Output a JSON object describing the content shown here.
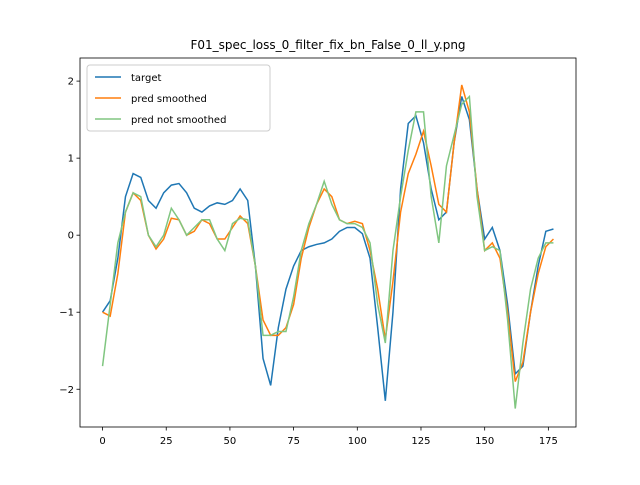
{
  "chart_data": {
    "type": "line",
    "title": "F01_spec_loss_0_filter_fix_bn_False_0_ll_y.png",
    "x": [
      0,
      3,
      6,
      9,
      12,
      15,
      18,
      21,
      24,
      27,
      30,
      33,
      36,
      39,
      42,
      45,
      48,
      51,
      54,
      57,
      60,
      63,
      66,
      69,
      72,
      75,
      78,
      81,
      84,
      87,
      90,
      93,
      96,
      99,
      102,
      105,
      108,
      111,
      114,
      117,
      120,
      123,
      126,
      129,
      132,
      135,
      138,
      141,
      144,
      147,
      150,
      153,
      156,
      159,
      162,
      165,
      168,
      171,
      174,
      177
    ],
    "series": [
      {
        "name": "target",
        "color": "#1f77b4",
        "values": [
          -1.0,
          -0.85,
          -0.3,
          0.5,
          0.8,
          0.75,
          0.45,
          0.35,
          0.55,
          0.65,
          0.67,
          0.55,
          0.35,
          0.3,
          0.38,
          0.42,
          0.4,
          0.45,
          0.6,
          0.45,
          -0.4,
          -1.6,
          -1.95,
          -1.2,
          -0.7,
          -0.4,
          -0.2,
          -0.15,
          -0.12,
          -0.1,
          -0.05,
          0.05,
          0.1,
          0.1,
          0.02,
          -0.3,
          -1.2,
          -2.15,
          -1.0,
          0.6,
          1.45,
          1.55,
          1.2,
          0.6,
          0.2,
          0.3,
          1.2,
          1.8,
          1.5,
          0.6,
          -0.05,
          0.1,
          -0.2,
          -0.9,
          -1.8,
          -1.7,
          -1.0,
          -0.4,
          0.05,
          0.08
        ]
      },
      {
        "name": "pred smoothed",
        "color": "#ff7f0e",
        "values": [
          -1.0,
          -1.05,
          -0.5,
          0.3,
          0.55,
          0.45,
          0.0,
          -0.18,
          -0.05,
          0.22,
          0.2,
          0.0,
          0.05,
          0.2,
          0.15,
          -0.05,
          -0.05,
          0.1,
          0.25,
          0.15,
          -0.4,
          -1.1,
          -1.3,
          -1.3,
          -1.2,
          -0.9,
          -0.3,
          0.1,
          0.4,
          0.6,
          0.5,
          0.2,
          0.15,
          0.18,
          0.15,
          -0.2,
          -0.7,
          -1.35,
          -0.6,
          0.3,
          0.8,
          1.05,
          1.35,
          0.9,
          0.4,
          0.3,
          1.2,
          1.95,
          1.6,
          0.6,
          -0.2,
          -0.1,
          -0.3,
          -1.0,
          -1.9,
          -1.65,
          -1.0,
          -0.5,
          -0.15,
          -0.05
        ]
      },
      {
        "name": "pred not smoothed",
        "color": "#80c680",
        "values": [
          -1.7,
          -0.9,
          -0.1,
          0.3,
          0.55,
          0.5,
          0.0,
          -0.15,
          0.0,
          0.35,
          0.2,
          0.0,
          0.1,
          0.2,
          0.2,
          -0.05,
          -0.2,
          0.15,
          0.22,
          0.2,
          -0.4,
          -1.3,
          -1.3,
          -1.25,
          -1.25,
          -0.8,
          -0.2,
          0.15,
          0.4,
          0.7,
          0.4,
          0.2,
          0.15,
          0.15,
          0.1,
          -0.1,
          -0.9,
          -1.4,
          -0.2,
          0.5,
          1.1,
          1.6,
          1.6,
          0.5,
          -0.1,
          0.9,
          1.3,
          1.7,
          1.8,
          0.5,
          -0.2,
          -0.15,
          -0.2,
          -1.1,
          -2.25,
          -1.4,
          -0.7,
          -0.3,
          -0.1,
          -0.1
        ]
      }
    ],
    "xlim": [
      -8.85,
      185.85
    ],
    "xticks": [
      0,
      25,
      50,
      75,
      100,
      125,
      150,
      175
    ],
    "ylim": [
      -2.49,
      2.3
    ],
    "yticks": [
      {
        "value": -2,
        "label": "−2"
      },
      {
        "value": -1,
        "label": "−1"
      },
      0,
      1,
      2
    ],
    "grid": false,
    "legend": "upper-left"
  }
}
